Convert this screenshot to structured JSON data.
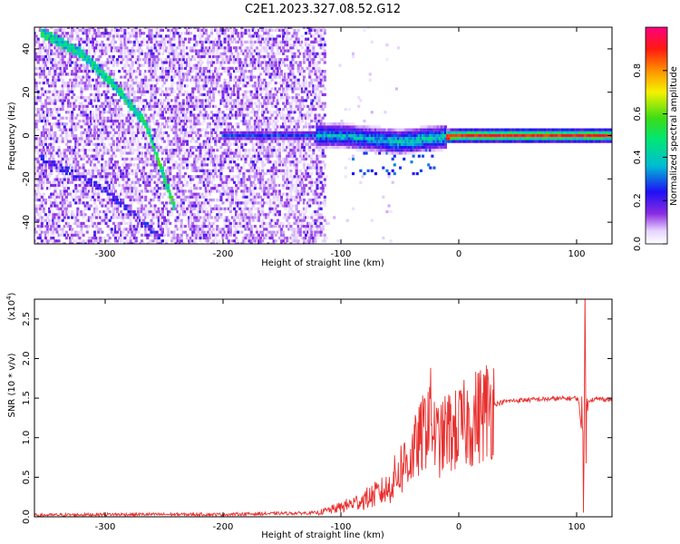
{
  "title": "C2E1.2023.327.08.52.G12",
  "colors": {
    "snr_line": "#e8302e",
    "background": "#ffffff",
    "axis": "#000000"
  },
  "chart_data": [
    {
      "type": "heatmap",
      "xlabel": "Height of straight line (km)",
      "ylabel": "Frequency (Hz)",
      "xlim": [
        -360,
        130
      ],
      "ylim": [
        -50,
        50
      ],
      "xticks": [
        -300,
        -200,
        -100,
        0,
        100
      ],
      "xtick_labels": [
        "-300",
        "-200",
        "-100",
        "0",
        "100"
      ],
      "yticks": [
        -40,
        -20,
        0,
        20,
        40
      ],
      "ytick_labels": [
        "-40",
        "-20",
        "0",
        "20",
        "40"
      ],
      "grid": false,
      "colorbar": {
        "label": "Normalized spectral amplitude",
        "range": [
          0.0,
          1.0
        ],
        "ticks": [
          0.0,
          0.2,
          0.4,
          0.6,
          0.8
        ],
        "tick_labels": [
          "0.0",
          "0.2",
          "0.4",
          "0.6",
          "0.8"
        ],
        "colormap": "rainbow (white → violet → blue → cyan → green → yellow → orange → red → magenta)"
      },
      "features": [
        {
          "name": "descending band",
          "points": [
            [
              -355,
              48
            ],
            [
              -320,
              38
            ],
            [
              -290,
              22
            ],
            [
              -265,
              5
            ],
            [
              -240,
              -35
            ]
          ],
          "amplitude": 0.45
        },
        {
          "name": "secondary band",
          "points": [
            [
              -355,
              -10
            ],
            [
              -300,
              -25
            ],
            [
              -250,
              -48
            ]
          ],
          "amplitude": 0.25
        },
        {
          "name": "ridge at 0 Hz",
          "points": [
            [
              -200,
              0
            ],
            [
              -100,
              0
            ],
            [
              -50,
              -3
            ],
            [
              0,
              0
            ],
            [
              130,
              0
            ]
          ],
          "amplitude_range": [
            0.3,
            0.95
          ]
        }
      ]
    },
    {
      "type": "line",
      "xlabel": "Height of straight line (km)",
      "ylabel": "SNR (10 * v/v)",
      "y_multiplier_label": "(x10",
      "y_multiplier_exp": "4",
      "y_multiplier_close": ")",
      "xlim": [
        -360,
        130
      ],
      "ylim": [
        0,
        2.75
      ],
      "xticks": [
        -300,
        -200,
        -100,
        0,
        100
      ],
      "xtick_labels": [
        "-300",
        "-200",
        "-100",
        "0",
        "100"
      ],
      "yticks": [
        0.0,
        0.5,
        1.0,
        1.5,
        2.0,
        2.5
      ],
      "ytick_labels": [
        "0.0",
        "0.5",
        "1.0",
        "1.5",
        "2.0",
        "2.5"
      ],
      "grid": false,
      "series": [
        {
          "x": [
            -360,
            -300,
            -200,
            -120,
            -100,
            -80,
            -60,
            -50,
            -40,
            -30,
            -25,
            -20,
            -15,
            -10,
            -5,
            0,
            10,
            20,
            30,
            40,
            60,
            80,
            100,
            102,
            104,
            105,
            106,
            107,
            108,
            110,
            120,
            130
          ],
          "y": [
            0.02,
            0.03,
            0.03,
            0.05,
            0.12,
            0.22,
            0.35,
            0.6,
            0.78,
            1.05,
            1.35,
            1.0,
            0.95,
            1.1,
            1.05,
            1.12,
            1.2,
            1.32,
            1.42,
            1.46,
            1.48,
            1.49,
            1.5,
            1.45,
            1.1,
            1.4,
            0.1,
            2.75,
            1.0,
            1.48,
            1.49,
            1.48
          ]
        }
      ]
    }
  ]
}
